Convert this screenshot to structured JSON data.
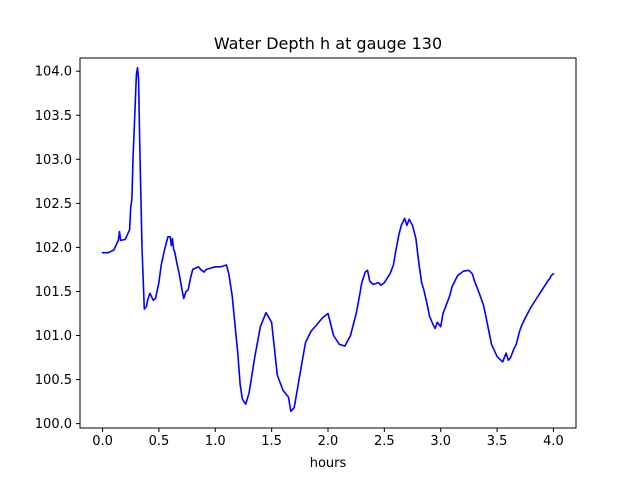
{
  "chart_data": {
    "type": "line",
    "title": "Water Depth h at gauge 130",
    "xlabel": "hours",
    "ylabel": "",
    "xlim": [
      -0.2,
      4.2
    ],
    "ylim": [
      99.95,
      104.15
    ],
    "xticks": [
      0.0,
      0.5,
      1.0,
      1.5,
      2.0,
      2.5,
      3.0,
      3.5,
      4.0
    ],
    "xtick_labels": [
      "0.0",
      "0.5",
      "1.0",
      "1.5",
      "2.0",
      "2.5",
      "3.0",
      "3.5",
      "4.0"
    ],
    "yticks": [
      100.0,
      100.5,
      101.0,
      101.5,
      102.0,
      102.5,
      103.0,
      103.5,
      104.0
    ],
    "ytick_labels": [
      "100.0",
      "100.5",
      "101.0",
      "101.5",
      "102.0",
      "102.5",
      "103.0",
      "103.5",
      "104.0"
    ],
    "grid": false,
    "series": [
      {
        "color": "#0000ff",
        "x": [
          0.0,
          0.05,
          0.1,
          0.14,
          0.15,
          0.16,
          0.2,
          0.24,
          0.25,
          0.26,
          0.27,
          0.3,
          0.31,
          0.32,
          0.33,
          0.35,
          0.37,
          0.39,
          0.4,
          0.42,
          0.45,
          0.47,
          0.5,
          0.52,
          0.55,
          0.58,
          0.6,
          0.61,
          0.62,
          0.63,
          0.64,
          0.66,
          0.68,
          0.7,
          0.72,
          0.74,
          0.76,
          0.78,
          0.8,
          0.85,
          0.87,
          0.9,
          0.92,
          0.95,
          1.0,
          1.05,
          1.1,
          1.12,
          1.15,
          1.18,
          1.2,
          1.22,
          1.24,
          1.27,
          1.3,
          1.35,
          1.4,
          1.45,
          1.5,
          1.55,
          1.6,
          1.65,
          1.67,
          1.7,
          1.75,
          1.8,
          1.85,
          1.9,
          1.95,
          2.0,
          2.05,
          2.1,
          2.15,
          2.2,
          2.25,
          2.27,
          2.3,
          2.33,
          2.35,
          2.37,
          2.4,
          2.45,
          2.47,
          2.5,
          2.55,
          2.58,
          2.6,
          2.63,
          2.65,
          2.68,
          2.7,
          2.72,
          2.75,
          2.78,
          2.8,
          2.83,
          2.85,
          2.88,
          2.9,
          2.93,
          2.95,
          2.97,
          3.0,
          3.02,
          3.05,
          3.08,
          3.1,
          3.13,
          3.15,
          3.2,
          3.25,
          3.28,
          3.3,
          3.33,
          3.35,
          3.38,
          3.4,
          3.45,
          3.5,
          3.55,
          3.58,
          3.6,
          3.62,
          3.65,
          3.67,
          3.7,
          3.72,
          3.75,
          3.8,
          3.85,
          3.88,
          3.9,
          3.93,
          3.95,
          3.97,
          3.98,
          4.0
        ],
        "y": [
          101.94,
          101.94,
          101.97,
          102.08,
          102.18,
          102.08,
          102.09,
          102.2,
          102.45,
          102.55,
          103.0,
          103.96,
          104.04,
          103.9,
          103.2,
          102.0,
          101.3,
          101.33,
          101.4,
          101.48,
          101.4,
          101.42,
          101.6,
          101.8,
          101.97,
          102.12,
          102.12,
          102.02,
          102.1,
          101.98,
          101.95,
          101.82,
          101.7,
          101.55,
          101.42,
          101.5,
          101.52,
          101.65,
          101.75,
          101.78,
          101.75,
          101.72,
          101.75,
          101.76,
          101.78,
          101.78,
          101.8,
          101.7,
          101.45,
          101.05,
          100.8,
          100.45,
          100.28,
          100.22,
          100.35,
          100.75,
          101.1,
          101.26,
          101.15,
          100.55,
          100.38,
          100.3,
          100.14,
          100.18,
          100.55,
          100.92,
          101.05,
          101.12,
          101.2,
          101.25,
          101.0,
          100.9,
          100.88,
          101.0,
          101.25,
          101.38,
          101.6,
          101.72,
          101.74,
          101.62,
          101.58,
          101.6,
          101.57,
          101.6,
          101.7,
          101.8,
          101.95,
          102.15,
          102.25,
          102.33,
          102.25,
          102.32,
          102.25,
          102.1,
          101.88,
          101.6,
          101.52,
          101.35,
          101.22,
          101.13,
          101.08,
          101.15,
          101.1,
          101.25,
          101.35,
          101.45,
          101.55,
          101.63,
          101.68,
          101.73,
          101.74,
          101.7,
          101.62,
          101.52,
          101.45,
          101.34,
          101.22,
          100.9,
          100.76,
          100.7,
          100.8,
          100.72,
          100.75,
          100.85,
          100.9,
          101.05,
          101.12,
          101.2,
          101.32,
          101.42,
          101.48,
          101.52,
          101.58,
          101.62,
          101.65,
          101.68,
          101.7
        ]
      }
    ]
  }
}
